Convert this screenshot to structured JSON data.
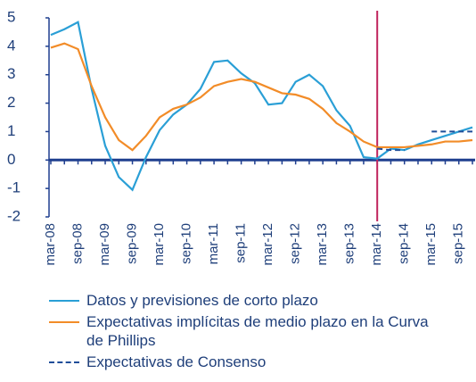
{
  "chart_data": {
    "type": "line",
    "categories": [
      "mar-08",
      null,
      "sep-08",
      null,
      "mar-09",
      null,
      "sep-09",
      null,
      "mar-10",
      null,
      "sep-10",
      null,
      "mar-11",
      null,
      "sep-11",
      null,
      "mar-12",
      null,
      "sep-12",
      null,
      "mar-13",
      null,
      "sep-13",
      null,
      "mar-14",
      null,
      "sep-14",
      null,
      "mar-15",
      null,
      "sep-15",
      null
    ],
    "series": [
      {
        "name": "Datos y previsiones de corto plazo",
        "color": "#2a9fd6",
        "dash": false,
        "values": [
          4.4,
          4.6,
          4.85,
          2.5,
          0.5,
          -0.6,
          -1.05,
          0.1,
          1.05,
          1.6,
          1.95,
          2.5,
          3.45,
          3.5,
          3.05,
          2.7,
          1.95,
          2.0,
          2.75,
          3.0,
          2.6,
          1.75,
          1.2,
          0.1,
          0.05,
          0.4,
          0.35,
          0.55,
          0.7,
          0.85,
          1.0,
          1.15
        ]
      },
      {
        "name": "Expectativas implícitas de medio plazo en la Curva de Phillips",
        "color": "#f28c28",
        "dash": false,
        "values": [
          3.95,
          4.1,
          3.9,
          2.6,
          1.5,
          0.7,
          0.35,
          0.85,
          1.5,
          1.8,
          1.95,
          2.2,
          2.6,
          2.75,
          2.85,
          2.75,
          2.55,
          2.35,
          2.3,
          2.15,
          1.8,
          1.3,
          1.0,
          0.65,
          0.45,
          0.45,
          0.45,
          0.5,
          0.55,
          0.65,
          0.65,
          0.7
        ]
      },
      {
        "name": "Expectativas de Consenso",
        "color": "#1f4e99",
        "dash": true,
        "values": [
          null,
          null,
          null,
          null,
          null,
          null,
          null,
          null,
          null,
          null,
          null,
          null,
          null,
          null,
          null,
          null,
          null,
          null,
          null,
          null,
          null,
          null,
          null,
          null,
          0.4,
          0.35,
          0.35,
          null,
          1.0,
          1.0,
          1.0,
          1.0
        ]
      }
    ],
    "vline": "mar-14",
    "vline_color": "#c0245c",
    "ylim": [
      -2,
      5
    ],
    "yticks": [
      -2,
      -1,
      0,
      1,
      2,
      3,
      4,
      5
    ]
  }
}
